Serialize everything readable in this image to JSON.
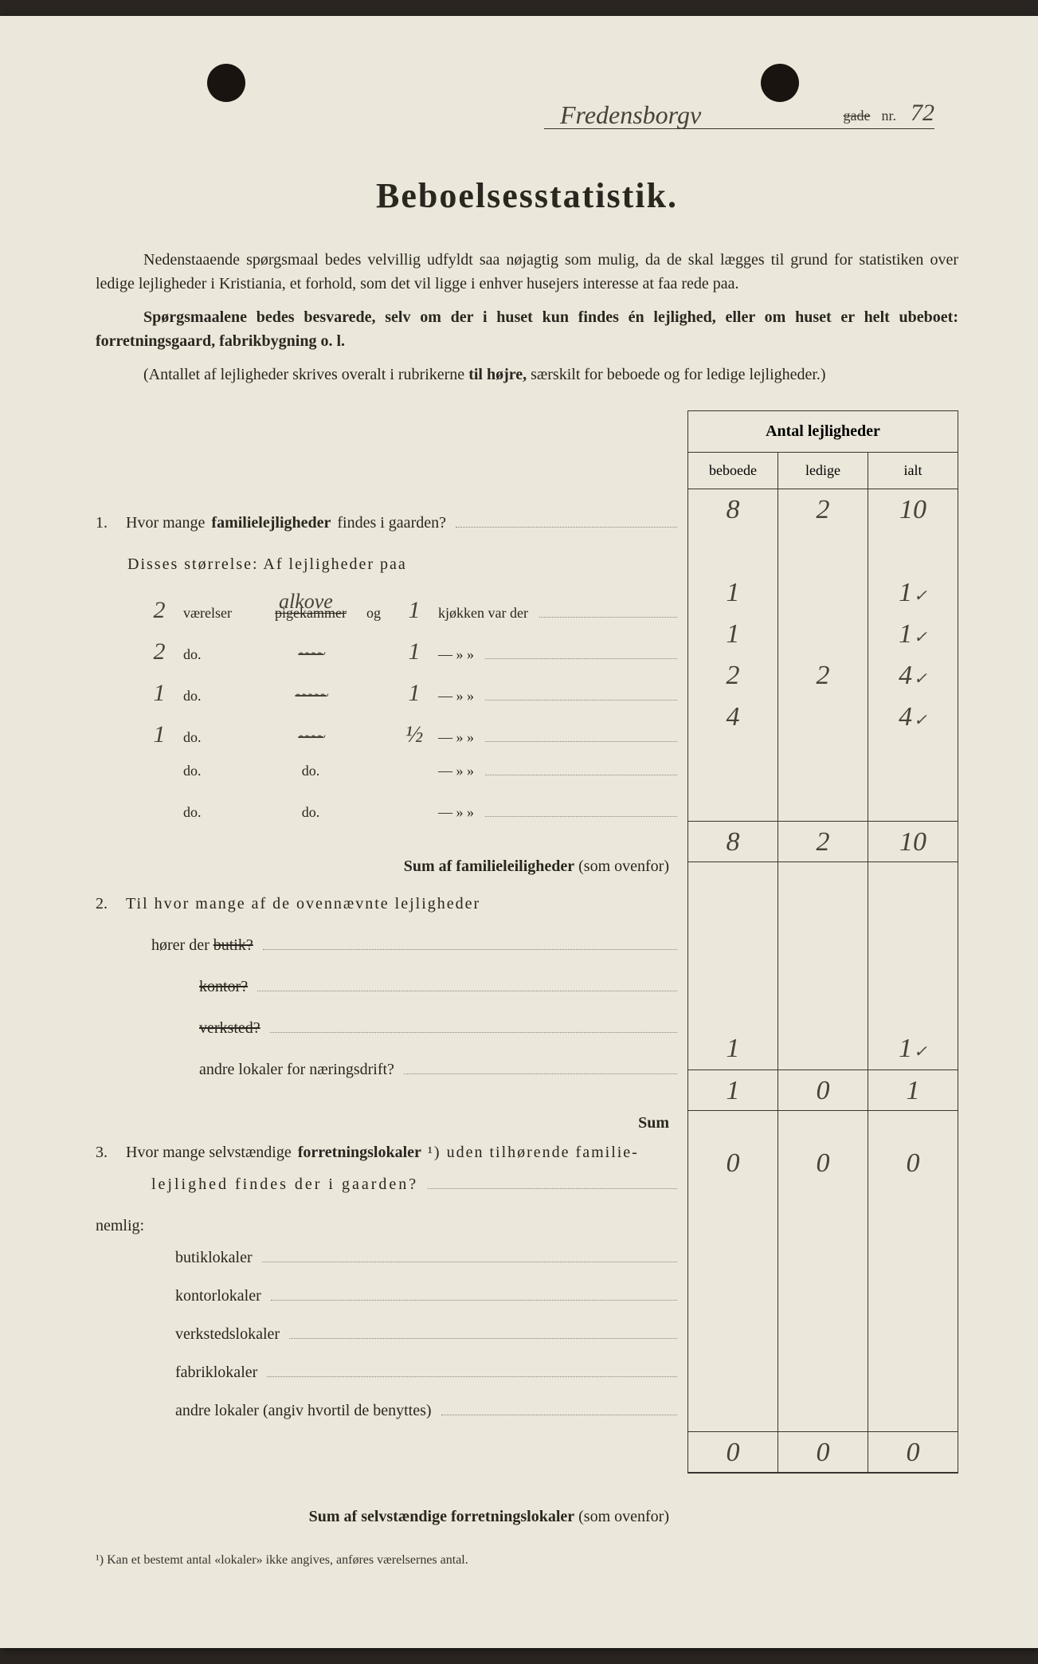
{
  "header": {
    "street": "Fredensborgv",
    "gade_label": "gade",
    "nr_label": "nr.",
    "nr": "72"
  },
  "title": "Beboelsesstatistik.",
  "intro": {
    "p1a": "Nedenstaaende spørgsmaal bedes velvillig udfyldt saa nøjagtig som mulig, da de skal lægges til grund for statistiken over ledige lejligheder i Kristiania, et forhold, som det vil ligge i enhver husejers interesse at faa rede paa.",
    "p2a": "Spørgsmaalene bedes besvarede, selv om der i huset kun findes én lejlighed, eller om huset er helt ubeboet: forretningsgaard, fabrikbygning o. l.",
    "p3a": "(Antallet af lejligheder skrives overalt i rubrikerne ",
    "p3b": "til højre,",
    "p3c": " særskilt for beboede og for ledige lejligheder.)"
  },
  "table": {
    "header": "Antal lejligheder",
    "cols": {
      "c1": "beboede",
      "c2": "ledige",
      "c3": "ialt"
    }
  },
  "q1": {
    "text_a": "Hvor mange ",
    "text_b": "familielejligheder",
    "text_c": " findes i gaarden?",
    "vals": {
      "b": "8",
      "l": "2",
      "i": "10"
    },
    "sub": "Disses størrelse:   Af lejligheder paa",
    "rows": [
      {
        "v": "2",
        "mid": "alkove",
        "mid_struck": "pigekammer",
        "og": "og",
        "k": "1",
        "tail": "kjøkken var der",
        "b": "1",
        "l": "",
        "i": "1",
        "check": "✓"
      },
      {
        "v": "2",
        "mid": "",
        "scribble": "~~~~",
        "og": "",
        "k": "1",
        "tail": "—     »    »",
        "b": "1",
        "l": "",
        "i": "1",
        "check": "✓"
      },
      {
        "v": "1",
        "mid": "",
        "scribble": "~~~~~",
        "og": "",
        "k": "1",
        "tail": "—     »    »",
        "b": "2",
        "l": "2",
        "i": "4",
        "check": "✓"
      },
      {
        "v": "1",
        "mid": "",
        "scribble": "~~~~",
        "og": "",
        "k": "½",
        "tail": "—     »    »",
        "b": "4",
        "l": "",
        "i": "4",
        "check": "✓"
      },
      {
        "v": "",
        "mid": "do.",
        "og": "",
        "k": "",
        "tail": "—     »    »",
        "b": "",
        "l": "",
        "i": "",
        "check": ""
      },
      {
        "v": "",
        "mid": "do.",
        "og": "",
        "k": "",
        "tail": "—     »    »",
        "b": "",
        "l": "",
        "i": "",
        "check": ""
      }
    ],
    "labels": {
      "vaer": "værelser",
      "do": "do."
    },
    "sum_label_a": "Sum af familieleiligheder",
    "sum_label_b": " (som ovenfor)",
    "sum": {
      "b": "8",
      "l": "2",
      "i": "10"
    }
  },
  "q2": {
    "text": "Til hvor mange af de ovennævnte lejligheder",
    "lines": [
      {
        "label": "hører der butik?",
        "struck": "butik?",
        "prefix": "hører der ",
        "b": "",
        "l": "",
        "i": ""
      },
      {
        "label": "kontor?",
        "struck": "kontor?",
        "prefix": "",
        "b": "",
        "l": "",
        "i": ""
      },
      {
        "label": "verksted?",
        "struck": "verksted?",
        "prefix": "",
        "b": "",
        "l": "",
        "i": ""
      },
      {
        "label": "andre lokaler for næringsdrift?",
        "struck": "",
        "prefix": "",
        "b": "1",
        "l": "",
        "i": "1",
        "check": "✓"
      }
    ],
    "sum_label": "Sum",
    "sum": {
      "b": "1",
      "l": "0",
      "i": "1"
    }
  },
  "q3": {
    "text_a": "Hvor mange selvstændige ",
    "text_b": "forretningslokaler",
    "text_c": "¹) uden tilhørende familie-",
    "text_d": "lejlighed findes der i gaarden?",
    "vals": {
      "b": "0",
      "l": "0",
      "i": "0"
    },
    "nemlig": "nemlig:",
    "lines": [
      {
        "label": "butiklokaler",
        "b": "",
        "l": "",
        "i": ""
      },
      {
        "label": "kontorlokaler",
        "b": "",
        "l": "",
        "i": ""
      },
      {
        "label": "verkstedslokaler",
        "b": "",
        "l": "",
        "i": ""
      },
      {
        "label": "fabriklokaler",
        "b": "",
        "l": "",
        "i": ""
      },
      {
        "label": "andre lokaler (angiv hvortil de benyttes)",
        "b": "",
        "l": "",
        "i": ""
      }
    ],
    "sum_label_a": "Sum af selvstændige forretningslokaler",
    "sum_label_b": " (som ovenfor)",
    "sum": {
      "b": "0",
      "l": "0",
      "i": "0"
    }
  },
  "footnote": "¹)  Kan et bestemt antal «lokaler» ikke angives, anføres værelsernes antal."
}
